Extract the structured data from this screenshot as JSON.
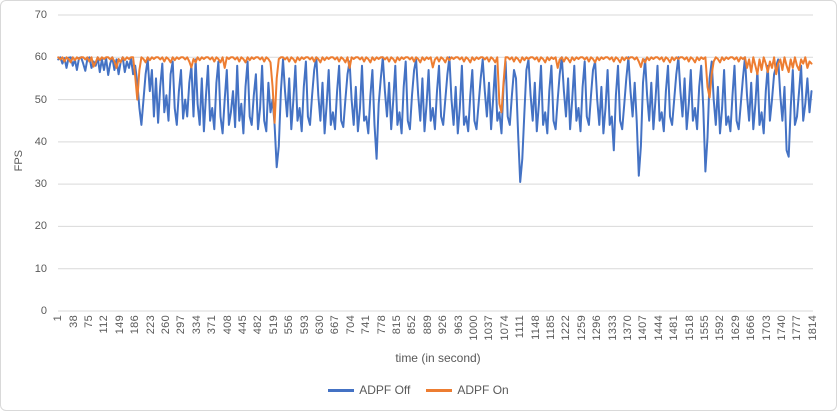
{
  "colors": {
    "grid": "#d9d9d9",
    "border": "#d9d9d9",
    "axis_text": "#595959"
  },
  "chart_data": {
    "type": "line",
    "title": "",
    "xlabel": "time (in second)",
    "ylabel": "FPS",
    "ylim": [
      0,
      70
    ],
    "y_ticks": [
      0,
      10,
      20,
      30,
      40,
      50,
      60,
      70
    ],
    "x_max": 1814,
    "x_tick_interval": 37,
    "x_ticks": [
      1,
      38,
      75,
      112,
      149,
      186,
      223,
      260,
      297,
      334,
      371,
      408,
      445,
      482,
      519,
      556,
      593,
      630,
      667,
      704,
      741,
      778,
      815,
      852,
      889,
      926,
      963,
      1000,
      1037,
      1074,
      1111,
      1148,
      1185,
      1222,
      1259,
      1296,
      1333,
      1370,
      1407,
      1444,
      1481,
      1518,
      1555,
      1592,
      1629,
      1666,
      1703,
      1740,
      1777,
      1814
    ],
    "grid": true,
    "legend_position": "bottom",
    "sample_t_start": 1,
    "sample_t_step": 5,
    "series": [
      {
        "name": "ADPF Off",
        "color": "#4472C4",
        "values": [
          59.5,
          60,
          58.5,
          59.8,
          57.5,
          59.9,
          60,
          58,
          59.5,
          57,
          59.8,
          60,
          58.5,
          56.8,
          59.5,
          60,
          57.5,
          59,
          58,
          60,
          56.5,
          59.5,
          57,
          59.8,
          55.8,
          58.5,
          60,
          57,
          59.5,
          56,
          58.8,
          60,
          56.5,
          59,
          57.5,
          59.8,
          56,
          58,
          54,
          48,
          44,
          50,
          56,
          59.5,
          52,
          57,
          46,
          55,
          44.5,
          53,
          58.5,
          47,
          51,
          45,
          56,
          59,
          48,
          44,
          52,
          57,
          45.5,
          50,
          46,
          54,
          58,
          46,
          59.5,
          49,
          44,
          55,
          42.5,
          51,
          58,
          45,
          48,
          43,
          54,
          59,
          46,
          42,
          50,
          57,
          44,
          47,
          52,
          43.5,
          58,
          45,
          49,
          42,
          53,
          59,
          46,
          44,
          51,
          56,
          43,
          48,
          58,
          45,
          42.5,
          54,
          47,
          50,
          44,
          34,
          39,
          52,
          59.5,
          52,
          46,
          55,
          43,
          50,
          58,
          45,
          48,
          42.5,
          53,
          59,
          46,
          44,
          51,
          57,
          60,
          51,
          45,
          54,
          42,
          49,
          57,
          44,
          47,
          43,
          52,
          58,
          45,
          43.5,
          50,
          56,
          59,
          50,
          44,
          53,
          42.5,
          48,
          58,
          45,
          46,
          42,
          51,
          57,
          44,
          36,
          49,
          55,
          60,
          52,
          46,
          54,
          43,
          50,
          58,
          44,
          47,
          42,
          53,
          59,
          45,
          43,
          51,
          57,
          59.5,
          51,
          45,
          55,
          42.5,
          49,
          57,
          45,
          48,
          43,
          52,
          58,
          46,
          44,
          50,
          56,
          60,
          50,
          44,
          53,
          42,
          48,
          58,
          44,
          46,
          42.5,
          51,
          57,
          45,
          43,
          49,
          55,
          59.5,
          52,
          46,
          54,
          43,
          50,
          58,
          45,
          47,
          42,
          53,
          59,
          46,
          44,
          51,
          57,
          55,
          42,
          30.5,
          36,
          47,
          57,
          59.5,
          51,
          45,
          54,
          42.5,
          49,
          58,
          44,
          47,
          42,
          52,
          58,
          45,
          43,
          50,
          56,
          60,
          52,
          46,
          55,
          43,
          50,
          58,
          45,
          48,
          42.5,
          53,
          59,
          46,
          44,
          51,
          57,
          59,
          50,
          44,
          53,
          42,
          48,
          57,
          44,
          46,
          38,
          51,
          58,
          45,
          43,
          49,
          55,
          60,
          52,
          46,
          54,
          45,
          32,
          39,
          54,
          59.5,
          51,
          45,
          54,
          43,
          50,
          58,
          45,
          47,
          42.5,
          52,
          58,
          46,
          44,
          50,
          56,
          60,
          52,
          46,
          55,
          43,
          49,
          57,
          45,
          48,
          43,
          53,
          58,
          48,
          33,
          41,
          55,
          59,
          50,
          44,
          53,
          42,
          48,
          57,
          44,
          46,
          42.5,
          51,
          58,
          45,
          43,
          49,
          55,
          60,
          51,
          45,
          54,
          43,
          49,
          57,
          44,
          47,
          42,
          52,
          58,
          45,
          50,
          56,
          58,
          59.5,
          51,
          45,
          53,
          38,
          36.5,
          48,
          57,
          44,
          46,
          52,
          58,
          45,
          49,
          55,
          47,
          52
        ]
      },
      {
        "name": "ADPF On",
        "color": "#ED7D31",
        "values": [
          60,
          59.5,
          60,
          59,
          60,
          59.6,
          58.8,
          60,
          59.3,
          60,
          59.6,
          60,
          60,
          59.5,
          60,
          59,
          60,
          57.8,
          58.8,
          60,
          59.3,
          60,
          59.6,
          60,
          60,
          59.5,
          60,
          59,
          57.5,
          59.6,
          58.8,
          60,
          59.3,
          60,
          59.6,
          60,
          60,
          55.5,
          50,
          57,
          60,
          59.6,
          58.8,
          60,
          59.3,
          60,
          59.6,
          60,
          60,
          59.5,
          60,
          59,
          60,
          59.6,
          58.8,
          60,
          59.3,
          60,
          59.6,
          60,
          60,
          59.5,
          60,
          59,
          57.6,
          59.6,
          58.8,
          60,
          59.3,
          60,
          59.6,
          60,
          60,
          59.5,
          60,
          59,
          60,
          59.6,
          58.8,
          60,
          57.5,
          60,
          59.6,
          60,
          60,
          59.5,
          60,
          59,
          60,
          59.6,
          58.8,
          60,
          59.3,
          60,
          59.6,
          60,
          60,
          59.5,
          60,
          59,
          60,
          59.6,
          58.8,
          53,
          44.5,
          55,
          59.6,
          60,
          60,
          59.5,
          60,
          59,
          60,
          59.6,
          58.8,
          60,
          59.3,
          60,
          59.6,
          60,
          60,
          59.5,
          60,
          59,
          60,
          59.6,
          58.8,
          60,
          59.3,
          60,
          59.6,
          60,
          60,
          59.5,
          60,
          59,
          60,
          59.6,
          58.8,
          60,
          57.5,
          60,
          59.6,
          60,
          60,
          59.5,
          60,
          59,
          60,
          59.6,
          58.8,
          60,
          59.3,
          60,
          59.6,
          60,
          60,
          59.5,
          60,
          59,
          60,
          59.6,
          58.8,
          60,
          59.3,
          60,
          59.6,
          60,
          60,
          59.5,
          60,
          59,
          60,
          59.6,
          58.8,
          60,
          59.3,
          60,
          59.6,
          60,
          57.6,
          59.5,
          60,
          59,
          60,
          59.6,
          58.8,
          60,
          59.3,
          60,
          59.6,
          60,
          60,
          59.5,
          60,
          59,
          60,
          59.6,
          58.8,
          60,
          59.3,
          60,
          59.6,
          60,
          60,
          59.5,
          60,
          59,
          60,
          59.6,
          58.8,
          60,
          49,
          47,
          54,
          60,
          60,
          59.5,
          60,
          59,
          60,
          59.6,
          58.8,
          60,
          59.3,
          60,
          59.6,
          60,
          60,
          59.5,
          60,
          59,
          60,
          59.6,
          58.8,
          60,
          59.3,
          60,
          59.6,
          60,
          57.5,
          59.5,
          60,
          59,
          60,
          59.6,
          58.8,
          60,
          59.3,
          60,
          59.6,
          60,
          60,
          59.5,
          60,
          59,
          60,
          59.6,
          58.8,
          60,
          59.3,
          60,
          59.6,
          60,
          60,
          59.5,
          60,
          59,
          60,
          59.6,
          58.8,
          60,
          59.3,
          60,
          59.6,
          60,
          60,
          59.5,
          60,
          59,
          57.7,
          59.6,
          58.8,
          60,
          59.3,
          60,
          59.6,
          60,
          60,
          59.5,
          60,
          59,
          60,
          59.6,
          58.8,
          60,
          59.3,
          60,
          59.6,
          60,
          60,
          59.5,
          60,
          59,
          60,
          59.6,
          58.8,
          60,
          59.3,
          60,
          59.6,
          60,
          53,
          50.5,
          56,
          59,
          60,
          59.6,
          58.8,
          60,
          59.3,
          60,
          59.6,
          60,
          60,
          59.5,
          60,
          59,
          60,
          59.6,
          60,
          57.5,
          59.5,
          56.5,
          60,
          58,
          56,
          59.5,
          57,
          60,
          58.5,
          56.5,
          59,
          57.5,
          60,
          56,
          58.5,
          59.5,
          57,
          60,
          58,
          56.5,
          59.5,
          57.5,
          60,
          58,
          57,
          59.5,
          58.5,
          60,
          57.5,
          59,
          58.5
        ]
      }
    ]
  }
}
